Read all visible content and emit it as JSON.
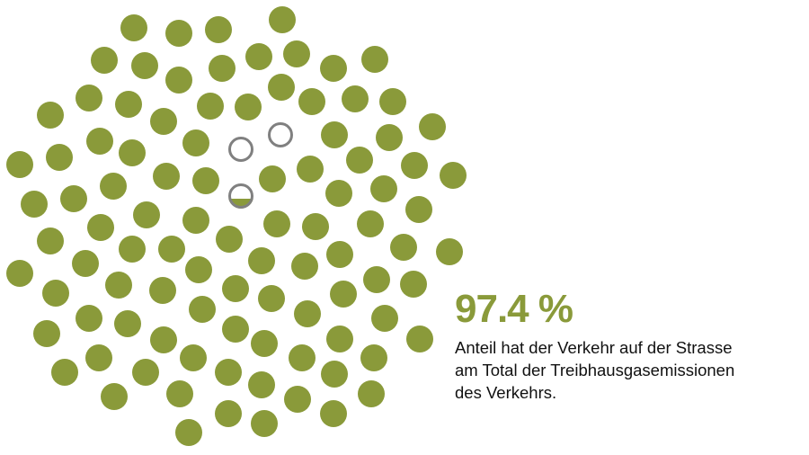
{
  "headline": {
    "value": "97.4 %",
    "lines": [
      "Anteil hat der Verkehr auf der Strasse",
      "am Total der Treibhausgasemissionen",
      "des Verkehrs."
    ]
  },
  "colors": {
    "filled": "#8a9a3a",
    "empty_outline": "#808080",
    "accent": "#8a9a3a"
  },
  "chart_data": {
    "type": "unit-dot (proportion)",
    "title": "",
    "total_units": 100,
    "units_filled": 97.4,
    "units_empty": 2.6,
    "value_percent": 97.4
  }
}
